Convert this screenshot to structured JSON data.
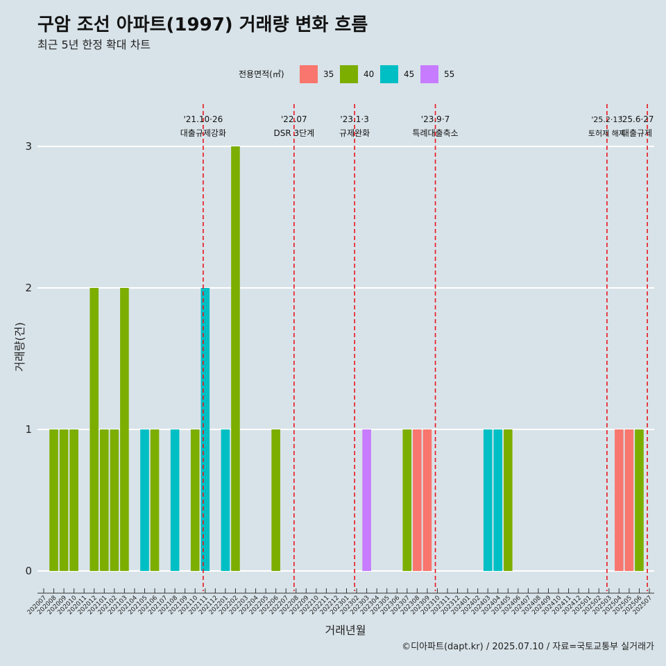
{
  "title": "구암 조선 아파트(1997) 거래량 변화 흐름",
  "subtitle": "최근 5년 한정 확대 차트",
  "caption": "©디아파트(dapt.kr) / 2025.07.10 / 자료=국토교통부 실거래가",
  "colors": {
    "background": "#d8e3e9",
    "grid": "#ffffff",
    "vline": "#e8141c"
  },
  "chart_data": {
    "type": "bar",
    "xlabel": "거래년월",
    "ylabel": "거래량(건)",
    "ylim": [
      0,
      3
    ],
    "yticks": [
      0,
      1,
      2,
      3
    ],
    "legend": {
      "title": "전용면적(㎡)",
      "position": "top"
    },
    "series": [
      {
        "name": "35",
        "color": "#f8766d"
      },
      {
        "name": "40",
        "color": "#7cae00"
      },
      {
        "name": "45",
        "color": "#00bfc4"
      },
      {
        "name": "55",
        "color": "#c77cff"
      }
    ],
    "categories": [
      "202007",
      "202008",
      "202009",
      "202010",
      "202011",
      "202012",
      "202101",
      "202102",
      "202103",
      "202104",
      "202105",
      "202106",
      "202107",
      "202108",
      "202109",
      "202110",
      "202111",
      "202112",
      "202201",
      "202202",
      "202203",
      "202204",
      "202205",
      "202206",
      "202207",
      "202208",
      "202209",
      "202210",
      "202211",
      "202212",
      "202301",
      "202302",
      "202303",
      "202304",
      "202305",
      "202306",
      "202307",
      "202308",
      "202309",
      "202310",
      "202311",
      "202312",
      "202401",
      "202402",
      "202403",
      "202404",
      "202405",
      "202406",
      "202407",
      "202408",
      "202409",
      "202410",
      "202411",
      "202412",
      "202501",
      "202502",
      "202503",
      "202504",
      "202505",
      "202506",
      "202507"
    ],
    "bars": [
      {
        "month": "202008",
        "area": "40",
        "value": 1
      },
      {
        "month": "202009",
        "area": "40",
        "value": 1
      },
      {
        "month": "202010",
        "area": "40",
        "value": 1
      },
      {
        "month": "202012",
        "area": "40",
        "value": 2
      },
      {
        "month": "202101",
        "area": "40",
        "value": 1
      },
      {
        "month": "202102",
        "area": "40",
        "value": 1
      },
      {
        "month": "202103",
        "area": "40",
        "value": 2
      },
      {
        "month": "202105",
        "area": "45",
        "value": 1
      },
      {
        "month": "202106",
        "area": "40",
        "value": 1
      },
      {
        "month": "202108",
        "area": "45",
        "value": 1
      },
      {
        "month": "202110",
        "area": "40",
        "value": 1
      },
      {
        "month": "202111",
        "area": "45",
        "value": 2
      },
      {
        "month": "202201",
        "area": "45",
        "value": 1
      },
      {
        "month": "202202",
        "area": "40",
        "value": 3
      },
      {
        "month": "202206",
        "area": "40",
        "value": 1
      },
      {
        "month": "202303",
        "area": "55",
        "value": 1
      },
      {
        "month": "202307",
        "area": "40",
        "value": 1
      },
      {
        "month": "202308",
        "area": "35",
        "value": 1
      },
      {
        "month": "202309",
        "area": "35",
        "value": 1
      },
      {
        "month": "202403",
        "area": "45",
        "value": 1
      },
      {
        "month": "202404",
        "area": "45",
        "value": 1
      },
      {
        "month": "202405",
        "area": "40",
        "value": 1
      },
      {
        "month": "202504",
        "area": "35",
        "value": 1
      },
      {
        "month": "202505",
        "area": "35",
        "value": 1
      },
      {
        "month": "202506",
        "area": "40",
        "value": 1
      }
    ],
    "annotations": [
      {
        "date": "2021-10-26",
        "month_pos": 15.8,
        "date_label": "'21.10·26",
        "text": "대출규제강화"
      },
      {
        "date": "2022-07",
        "month_pos": 24.8,
        "date_label": "'22.07",
        "text": "DSR 3단계"
      },
      {
        "date": "2023-01-03",
        "month_pos": 30.8,
        "date_label": "'23.1·3",
        "text": "규제완화"
      },
      {
        "date": "2023-09-07",
        "month_pos": 38.8,
        "date_label": "'23.9·7",
        "text": "특례대출축소"
      },
      {
        "date": "2025-02-13",
        "month_pos": 55.8,
        "date_label": "'25.2·13",
        "text": "토허제 해제"
      },
      {
        "date": "2025-06-27",
        "month_pos": 59.8,
        "date_label": "'25.6·27",
        "text": "대출규제"
      }
    ]
  }
}
